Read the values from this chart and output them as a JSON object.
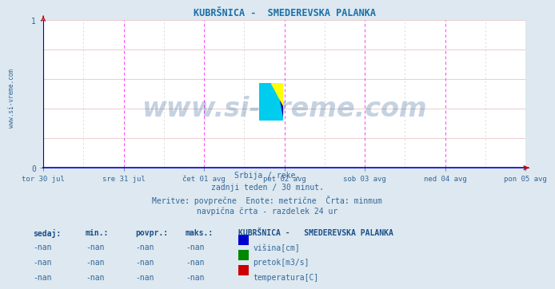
{
  "title": "KUBRŠNICA -  SMEDEREVSKA PALANKA",
  "title_color": "#1a6fa8",
  "title_fontsize": 8.5,
  "bg_color": "#dde8f0",
  "plot_bg_color": "#ffffff",
  "xlim": [
    0,
    1
  ],
  "ylim": [
    0,
    1
  ],
  "yticks": [
    0,
    1
  ],
  "xtick_labels": [
    "tor 30 jul",
    "sre 31 jul",
    "čet 01 avg",
    "pet 02 avg",
    "sob 03 avg",
    "ned 04 avg",
    "pon 05 avg"
  ],
  "xtick_positions": [
    0.0,
    0.1667,
    0.3333,
    0.5,
    0.6667,
    0.8333,
    1.0
  ],
  "hgrid_color": "#ddbbbb",
  "vgrid_major_color": "#ff44ff",
  "vgrid_minor_color": "#999999",
  "axis_color": "#0000cc",
  "tick_color": "#336699",
  "watermark": "www.si-vreme.com",
  "watermark_color": "#1a4f8a",
  "watermark_alpha": 0.25,
  "watermark_fontsize": 24,
  "side_text": "www.si-vreme.com",
  "side_text_color": "#336699",
  "side_text_fontsize": 5.5,
  "subtitle_lines": [
    "Srbija / reke.",
    "zadnji teden / 30 minut.",
    "Meritve: povprečne  Enote: metrične  Črta: minmum",
    "navpična črta - razdelek 24 ur"
  ],
  "subtitle_color": "#336699",
  "subtitle_fontsize": 7,
  "legend_title": "KUBRŠNICA -   SMEDEREVSKA PALANKA",
  "legend_title_color": "#1a4f8a",
  "legend_title_fontsize": 7,
  "legend_headers": [
    "sedaj:",
    "min.:",
    "povpr.:",
    "maks.:"
  ],
  "legend_header_color": "#1a4f8a",
  "legend_rows": [
    [
      "-nan",
      "-nan",
      "-nan",
      "-nan",
      "#0000cc",
      "višina[cm]"
    ],
    [
      "-nan",
      "-nan",
      "-nan",
      "-nan",
      "#008800",
      "pretok[m3/s]"
    ],
    [
      "-nan",
      "-nan",
      "-nan",
      "-nan",
      "#cc0000",
      "temperatura[C]"
    ]
  ],
  "legend_text_color": "#336699",
  "legend_fontsize": 7,
  "arrow_color": "#cc0000"
}
